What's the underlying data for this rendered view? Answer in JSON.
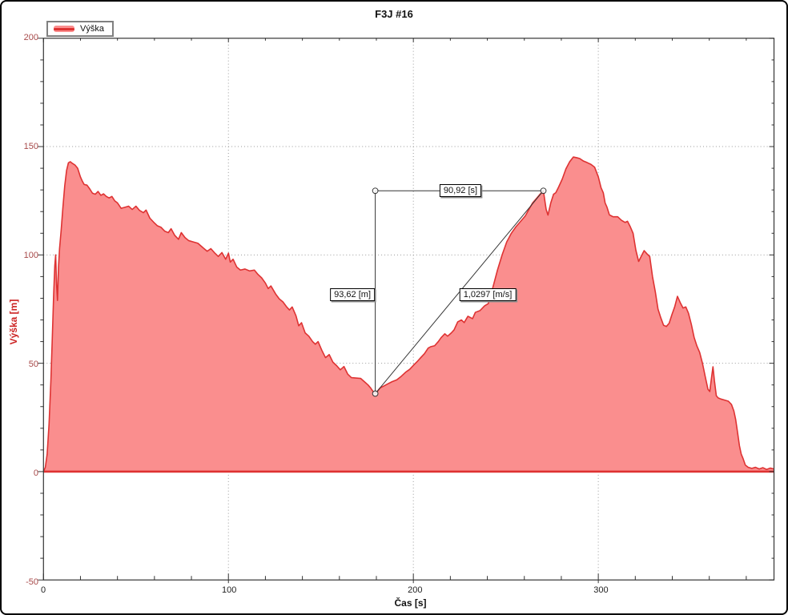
{
  "page": {
    "title": "F3J #16"
  },
  "legend": {
    "label": "Výška"
  },
  "axis_titles": {
    "y": "Výška [m]",
    "x": "Čas [s]"
  },
  "annotations": {
    "time_delta": "90,92 [s]",
    "height_delta": "93,62 [m]",
    "climb_rate": "1,0297 [m/s]"
  },
  "colors": {
    "series_fill": "#FA8E8E",
    "series_line": "#DE3232",
    "y_tick_label": "#A84A4A",
    "axis_title_red": "#CC2222",
    "grid": "#999999",
    "axis_line": "#333333",
    "annotation_line": "#333333"
  },
  "chart_data": {
    "type": "area",
    "title": "F3J #16",
    "xlabel": "Čas [s]",
    "ylabel": "Výška [m]",
    "xlim": [
      0,
      395
    ],
    "ylim": [
      -50,
      200
    ],
    "x_major_ticks": [
      0,
      100,
      200,
      300
    ],
    "y_major_ticks": [
      -50,
      0,
      50,
      100,
      150,
      200
    ],
    "x_minor_step": 20,
    "y_minor_step": 10,
    "grid_x": [
      100,
      200,
      300
    ],
    "grid_y": [
      0,
      50,
      100,
      150
    ],
    "legend_position": "top-left",
    "series": [
      {
        "name": "Výška",
        "color": "#DE3232",
        "fill": "#FA8E8E",
        "points": [
          [
            0,
            0
          ],
          [
            1,
            2
          ],
          [
            2,
            8
          ],
          [
            3,
            22
          ],
          [
            4,
            42
          ],
          [
            4.8,
            62
          ],
          [
            5.5,
            82
          ],
          [
            6.1,
            95
          ],
          [
            6.6,
            100
          ],
          [
            7.1,
            86
          ],
          [
            7.6,
            79
          ],
          [
            8.1,
            94
          ],
          [
            8.7,
            103
          ],
          [
            9.5,
            111
          ],
          [
            10.5,
            122
          ],
          [
            11.5,
            132
          ],
          [
            12.5,
            139
          ],
          [
            13.5,
            142.5
          ],
          [
            14.5,
            143
          ],
          [
            15.5,
            142.3
          ],
          [
            17,
            141.5
          ],
          [
            18.5,
            140
          ],
          [
            20,
            136
          ],
          [
            21,
            134
          ],
          [
            22,
            132.5
          ],
          [
            23.5,
            132.2
          ],
          [
            25,
            130.5
          ],
          [
            26.5,
            128.5
          ],
          [
            28,
            128
          ],
          [
            29.5,
            129.3
          ],
          [
            31,
            127.5
          ],
          [
            32.5,
            128.2
          ],
          [
            34,
            127
          ],
          [
            35.5,
            126.3
          ],
          [
            37,
            127
          ],
          [
            38.5,
            125
          ],
          [
            40,
            124
          ],
          [
            42,
            121.5
          ],
          [
            44,
            122
          ],
          [
            46,
            122.5
          ],
          [
            48,
            121
          ],
          [
            50,
            122.5
          ],
          [
            52,
            120.5
          ],
          [
            54,
            119.5
          ],
          [
            55.5,
            120.7
          ],
          [
            57.5,
            117
          ],
          [
            59.5,
            115.2
          ],
          [
            61.5,
            113.5
          ],
          [
            63.5,
            112.8
          ],
          [
            65.5,
            111
          ],
          [
            67.5,
            110.3
          ],
          [
            69,
            112.1
          ],
          [
            71,
            109
          ],
          [
            73,
            107.2
          ],
          [
            74.5,
            110.3
          ],
          [
            76.5,
            108
          ],
          [
            78.5,
            106.6
          ],
          [
            81,
            106
          ],
          [
            83.5,
            105.4
          ],
          [
            86,
            103.5
          ],
          [
            88.5,
            101.7
          ],
          [
            90.5,
            102.9
          ],
          [
            92.5,
            101
          ],
          [
            94.5,
            99.3
          ],
          [
            96.5,
            101.1
          ],
          [
            98.5,
            98
          ],
          [
            100,
            100.8
          ],
          [
            101,
            96.7
          ],
          [
            102.5,
            98
          ],
          [
            104.5,
            94.4
          ],
          [
            106.5,
            93
          ],
          [
            109,
            93.5
          ],
          [
            111.5,
            92.6
          ],
          [
            114,
            93
          ],
          [
            116,
            91
          ],
          [
            118,
            89.4
          ],
          [
            120,
            87
          ],
          [
            121.5,
            84.5
          ],
          [
            123,
            85.7
          ],
          [
            125.5,
            82
          ],
          [
            127.5,
            79.7
          ],
          [
            129.5,
            78.3
          ],
          [
            131.5,
            76
          ],
          [
            133,
            74.6
          ],
          [
            134.5,
            76
          ],
          [
            136.5,
            72
          ],
          [
            138,
            67.3
          ],
          [
            139.5,
            68.7
          ],
          [
            141.5,
            64
          ],
          [
            143.5,
            62.5
          ],
          [
            145.5,
            60
          ],
          [
            147,
            58.8
          ],
          [
            148.5,
            60
          ],
          [
            150.5,
            56
          ],
          [
            152.5,
            52.6
          ],
          [
            154.5,
            54
          ],
          [
            156.5,
            50.5
          ],
          [
            158.5,
            48.9
          ],
          [
            160.5,
            47
          ],
          [
            162.5,
            48.5
          ],
          [
            164.5,
            45
          ],
          [
            166.5,
            43.4
          ],
          [
            169,
            43.2
          ],
          [
            171.5,
            43
          ],
          [
            173.5,
            41.5
          ],
          [
            175.5,
            40
          ],
          [
            177,
            38.5
          ],
          [
            178.2,
            37
          ],
          [
            179.4,
            36
          ],
          [
            180.5,
            37
          ],
          [
            182,
            38.6
          ],
          [
            184,
            39.5
          ],
          [
            186,
            40.4
          ],
          [
            188.5,
            41.5
          ],
          [
            191,
            42.3
          ],
          [
            193.5,
            44
          ],
          [
            196,
            46
          ],
          [
            198,
            47.2
          ],
          [
            200,
            49
          ],
          [
            202,
            50.7
          ],
          [
            204,
            52.6
          ],
          [
            206,
            54.4
          ],
          [
            208,
            57
          ],
          [
            209.5,
            57.7
          ],
          [
            211.5,
            58.1
          ],
          [
            213.5,
            60
          ],
          [
            215,
            61.8
          ],
          [
            217,
            63.6
          ],
          [
            218.5,
            62.5
          ],
          [
            220.5,
            64
          ],
          [
            222,
            65.4
          ],
          [
            224,
            69.1
          ],
          [
            226,
            70
          ],
          [
            227.5,
            68.8
          ],
          [
            229.5,
            71.7
          ],
          [
            232,
            70.6
          ],
          [
            233.5,
            73.5
          ],
          [
            236,
            74.3
          ],
          [
            238.5,
            76.5
          ],
          [
            240.5,
            77.5
          ],
          [
            243,
            85
          ],
          [
            245.5,
            93
          ],
          [
            248,
            100
          ],
          [
            250.5,
            106
          ],
          [
            253,
            110
          ],
          [
            255.5,
            113
          ],
          [
            258,
            115.5
          ],
          [
            260.5,
            118
          ],
          [
            262.5,
            121
          ],
          [
            264.5,
            124
          ],
          [
            266.5,
            126
          ],
          [
            268.5,
            128
          ],
          [
            270.3,
            129.6
          ],
          [
            271.8,
            121
          ],
          [
            272.8,
            118.4
          ],
          [
            274.3,
            124
          ],
          [
            275.8,
            128
          ],
          [
            277,
            128.7
          ],
          [
            278.5,
            131.2
          ],
          [
            280.5,
            135
          ],
          [
            282.5,
            139.7
          ],
          [
            284.5,
            143
          ],
          [
            286.5,
            145.2
          ],
          [
            288.5,
            144.8
          ],
          [
            290,
            144.5
          ],
          [
            292,
            143.3
          ],
          [
            294,
            142.6
          ],
          [
            296,
            141.8
          ],
          [
            298,
            140.5
          ],
          [
            300,
            136
          ],
          [
            301.5,
            131
          ],
          [
            302.7,
            128.7
          ],
          [
            303.7,
            124
          ],
          [
            304.7,
            122
          ],
          [
            306,
            118.5
          ],
          [
            308,
            117.6
          ],
          [
            310.5,
            117.6
          ],
          [
            312.5,
            116
          ],
          [
            314.5,
            115
          ],
          [
            315.8,
            115.5
          ],
          [
            317.3,
            113
          ],
          [
            318.8,
            110
          ],
          [
            320.3,
            102.2
          ],
          [
            321.8,
            97
          ],
          [
            323.3,
            99.5
          ],
          [
            324.8,
            102
          ],
          [
            326.3,
            100.5
          ],
          [
            327.8,
            99.3
          ],
          [
            329.3,
            90
          ],
          [
            330.8,
            83
          ],
          [
            332.3,
            75
          ],
          [
            333.8,
            71
          ],
          [
            335.3,
            67.5
          ],
          [
            336.8,
            67
          ],
          [
            338.3,
            68.5
          ],
          [
            339.8,
            72.5
          ],
          [
            341.3,
            76
          ],
          [
            342.8,
            80.9
          ],
          [
            344.3,
            78
          ],
          [
            345.8,
            75.5
          ],
          [
            347.3,
            76
          ],
          [
            348.8,
            73
          ],
          [
            350.3,
            68
          ],
          [
            351.8,
            62
          ],
          [
            353.3,
            58
          ],
          [
            354.8,
            55
          ],
          [
            356.3,
            50
          ],
          [
            357.8,
            44
          ],
          [
            359.3,
            38
          ],
          [
            360.3,
            37
          ],
          [
            361.3,
            44
          ],
          [
            362,
            48.4
          ],
          [
            362.8,
            42
          ],
          [
            363.8,
            35
          ],
          [
            364.8,
            34
          ],
          [
            366.3,
            33.5
          ],
          [
            368.3,
            33
          ],
          [
            370.3,
            32.5
          ],
          [
            372,
            31
          ],
          [
            373.3,
            28
          ],
          [
            374.3,
            24
          ],
          [
            375.3,
            18
          ],
          [
            376.3,
            12
          ],
          [
            377.3,
            8
          ],
          [
            378.3,
            6
          ],
          [
            379.5,
            3
          ],
          [
            381,
            2
          ],
          [
            383,
            1.5
          ],
          [
            385,
            2
          ],
          [
            387,
            1.2
          ],
          [
            389,
            1.8
          ],
          [
            391,
            1
          ],
          [
            393,
            1.6
          ],
          [
            395,
            1.2
          ]
        ]
      }
    ],
    "measurement": {
      "from": {
        "t": 179.4,
        "alt": 36.0
      },
      "to": {
        "t": 270.3,
        "alt": 129.62
      },
      "dt_label": "90,92 [s]",
      "dh_label": "93,62 [m]",
      "rate_label": "1,0297 [m/s]"
    }
  }
}
